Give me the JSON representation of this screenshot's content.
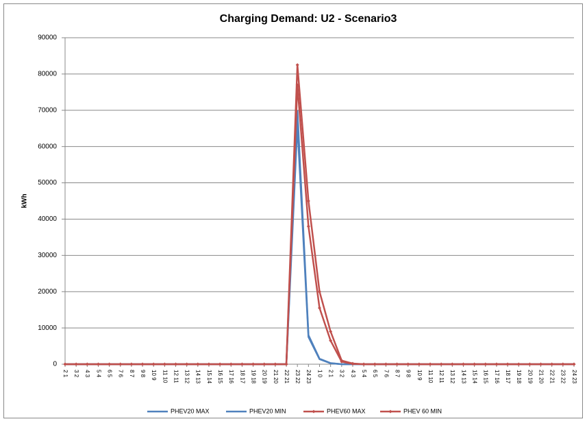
{
  "chart_data": {
    "type": "line",
    "title": "Charging Demand: U2 - Scenario3",
    "y_label": "kWh",
    "categories": [
      "2 1",
      "3 2",
      "4 3",
      "5 4",
      "6 5",
      "7 6",
      "8 7",
      "9 8",
      "10 9",
      "11 10",
      "12 11",
      "13 12",
      "14 13",
      "15 14",
      "16 15",
      "17 16",
      "18 17",
      "19 18",
      "20 19",
      "21 20",
      "22 21",
      "23 22",
      "24 23",
      "1 0",
      "2 1",
      "3 2",
      "4 3",
      "5 4",
      "6 5",
      "7 6",
      "8 7",
      "9 8",
      "10 9",
      "11 10",
      "12 11",
      "13 12",
      "14 13",
      "15 14",
      "16 15",
      "17 16",
      "18 17",
      "19 18",
      "20 19",
      "21 20",
      "22 21",
      "23 22",
      "24 23"
    ],
    "series": [
      {
        "name": "PHEV20 MAX",
        "color": "#4f81bd",
        "marker": false,
        "values": [
          0,
          0,
          0,
          0,
          0,
          0,
          0,
          0,
          0,
          0,
          0,
          0,
          0,
          0,
          0,
          0,
          0,
          0,
          0,
          0,
          0,
          70000,
          8000,
          1500,
          300,
          0,
          0,
          0,
          0,
          0,
          0,
          0,
          0,
          0,
          0,
          0,
          0,
          0,
          0,
          0,
          0,
          0,
          0,
          0,
          0,
          0,
          0
        ]
      },
      {
        "name": "PHEV20 MIN",
        "color": "#4f81bd",
        "marker": false,
        "values": [
          0,
          0,
          0,
          0,
          0,
          0,
          0,
          0,
          0,
          0,
          0,
          0,
          0,
          0,
          0,
          0,
          0,
          0,
          0,
          0,
          0,
          66000,
          7500,
          1400,
          250,
          0,
          0,
          0,
          0,
          0,
          0,
          0,
          0,
          0,
          0,
          0,
          0,
          0,
          0,
          0,
          0,
          0,
          0,
          0,
          0,
          0,
          0
        ]
      },
      {
        "name": "PHEV60 MAX",
        "color": "#c0504d",
        "marker": true,
        "values": [
          0,
          0,
          0,
          0,
          0,
          0,
          0,
          0,
          0,
          0,
          0,
          0,
          0,
          0,
          0,
          0,
          0,
          0,
          0,
          0,
          0,
          82500,
          45000,
          20000,
          9000,
          1000,
          200,
          0,
          0,
          0,
          0,
          0,
          0,
          0,
          0,
          0,
          0,
          0,
          0,
          0,
          0,
          0,
          0,
          0,
          0,
          0,
          0
        ]
      },
      {
        "name": "PHEV 60 MIN",
        "color": "#c0504d",
        "marker": true,
        "values": [
          0,
          0,
          0,
          0,
          0,
          0,
          0,
          0,
          0,
          0,
          0,
          0,
          0,
          0,
          0,
          0,
          0,
          0,
          0,
          0,
          0,
          77000,
          38000,
          15500,
          6500,
          700,
          100,
          0,
          0,
          0,
          0,
          0,
          0,
          0,
          0,
          0,
          0,
          0,
          0,
          0,
          0,
          0,
          0,
          0,
          0,
          0,
          0
        ]
      }
    ],
    "ylim": [
      0,
      90000
    ],
    "yticks": [
      0,
      10000,
      20000,
      30000,
      40000,
      50000,
      60000,
      70000,
      80000,
      90000
    ],
    "grid": true,
    "legend": "bottom"
  }
}
